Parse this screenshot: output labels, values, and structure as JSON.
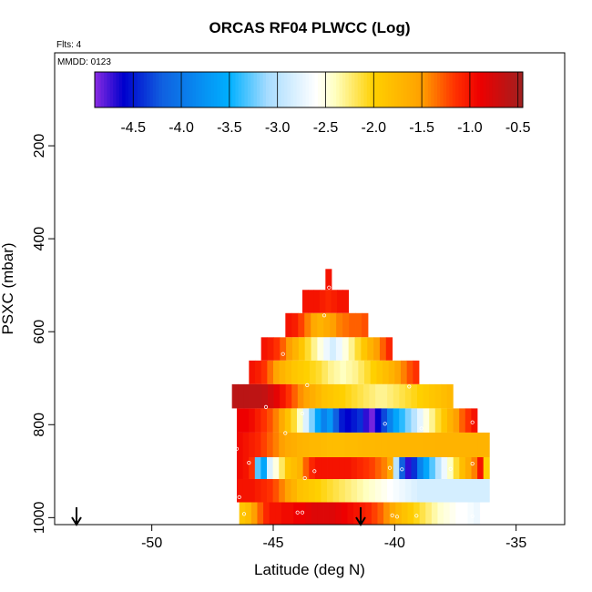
{
  "chart_data": {
    "type": "heatmap",
    "title": "ORCAS RF04 PLWCC (Log)",
    "flights_note": "Flts: 4",
    "date_note": "MMDD: 0123",
    "xlabel": "Latitude (deg N)",
    "ylabel": "PSXC (mbar)",
    "xlim": [
      -54.0,
      -33.0
    ],
    "ylim": [
      1015,
      0
    ],
    "x_ticks": [
      -50,
      -45,
      -40,
      -35
    ],
    "x_tick_labels": [
      "-50",
      "-45",
      "-40",
      "-35"
    ],
    "y_ticks": [
      200,
      400,
      600,
      800,
      1000
    ],
    "y_tick_labels": [
      "200",
      "400",
      "600",
      "800",
      "1000"
    ],
    "colorbar": {
      "min": -4.9,
      "max": -0.45,
      "ticks": [
        -4.5,
        -4.0,
        -3.5,
        -3.0,
        -2.5,
        -2.0,
        -1.5,
        -1.0,
        -0.5
      ],
      "tick_labels": [
        "-4.5",
        "-4.0",
        "-3.5",
        "-3.0",
        "-2.5",
        "-2.0",
        "-1.5",
        "-1.0",
        "-0.5"
      ],
      "stops": [
        {
          "v": -4.9,
          "c": "#8a2be2"
        },
        {
          "v": -4.6,
          "c": "#0000cd"
        },
        {
          "v": -4.2,
          "c": "#1060e0"
        },
        {
          "v": -3.5,
          "c": "#00b0ff"
        },
        {
          "v": -3.1,
          "c": "#a8dcff"
        },
        {
          "v": -2.6,
          "c": "#ffffff"
        },
        {
          "v": -2.4,
          "c": "#ffffc0"
        },
        {
          "v": -2.0,
          "c": "#ffd000"
        },
        {
          "v": -1.5,
          "c": "#ffa000"
        },
        {
          "v": -1.15,
          "c": "#ff3000"
        },
        {
          "v": -0.9,
          "c": "#ee0000"
        },
        {
          "v": -0.45,
          "c": "#a02020"
        }
      ]
    },
    "layers": [
      {
        "p_top": 465,
        "p_bot": 510,
        "lat_start": -42.85,
        "lat_end": -42.6,
        "values": [
          -1.0
        ]
      },
      {
        "p_top": 510,
        "p_bot": 560,
        "lat_start": -43.8,
        "lat_end": -41.9,
        "values": [
          -1.0,
          -1.0,
          -1.0,
          -1.05,
          -1.1,
          -1.05,
          -1.0,
          -1.0
        ]
      },
      {
        "p_top": 560,
        "p_bot": 612,
        "lat_start": -44.5,
        "lat_end": -41.1,
        "values": [
          -1.0,
          -1.05,
          -1.2,
          -1.4,
          -1.6,
          -1.7,
          -1.6,
          -1.5,
          -1.4,
          -1.35,
          -1.3,
          -1.3,
          -1.25
        ]
      },
      {
        "p_top": 612,
        "p_bot": 662,
        "lat_start": -45.5,
        "lat_end": -40.1,
        "values": [
          -1.0,
          -1.05,
          -1.15,
          -1.3,
          -1.5,
          -1.7,
          -1.9,
          -2.1,
          -2.3,
          -2.5,
          -2.7,
          -2.85,
          -2.7,
          -2.5,
          -2.3,
          -2.1,
          -1.9,
          -1.7,
          -1.5,
          -1.3,
          -1.1
        ]
      },
      {
        "p_top": 662,
        "p_bot": 713,
        "lat_start": -46.0,
        "lat_end": -39.0,
        "values": [
          -1.0,
          -1.05,
          -1.15,
          -1.35,
          -1.55,
          -1.7,
          -1.8,
          -1.9,
          -1.95,
          -2.0,
          -2.05,
          -2.1,
          -2.2,
          -2.3,
          -2.35,
          -2.4,
          -2.35,
          -2.3,
          -2.2,
          -2.1,
          -2.0,
          -1.9,
          -1.8,
          -1.7,
          -1.55,
          -1.4,
          -1.25,
          -1.15
        ]
      },
      {
        "p_top": 713,
        "p_bot": 765,
        "lat_start": -46.7,
        "lat_end": -37.6,
        "values": [
          -0.6,
          -0.6,
          -0.6,
          -0.62,
          -0.62,
          -0.65,
          -0.75,
          -0.85,
          -1.0,
          -1.15,
          -1.3,
          -1.45,
          -1.55,
          -1.65,
          -1.75,
          -1.85,
          -1.9,
          -1.95,
          -2.0,
          -2.05,
          -2.1,
          -2.15,
          -2.2,
          -2.25,
          -2.3,
          -2.3,
          -2.25,
          -2.2,
          -2.15,
          -2.1,
          -2.05,
          -2.0,
          -1.95,
          -1.9,
          -1.85,
          -1.8,
          -1.75
        ]
      },
      {
        "p_top": 765,
        "p_bot": 817,
        "lat_start": -46.5,
        "lat_end": -36.6,
        "values": [
          -0.9,
          -0.9,
          -0.95,
          -1.05,
          -1.15,
          -1.25,
          -1.4,
          -1.6,
          -1.85,
          -2.1,
          -2.4,
          -2.8,
          -3.2,
          -3.6,
          -3.9,
          -3.7,
          -4.2,
          -4.5,
          -4.6,
          -4.5,
          -4.4,
          -4.7,
          -4.85,
          -4.6,
          -4.3,
          -3.9,
          -3.6,
          -3.4,
          -3.2,
          -3.0,
          -2.75,
          -2.5,
          -2.3,
          -2.1,
          -1.9,
          -1.7,
          -1.5,
          -1.3,
          -1.15,
          -1.0
        ]
      },
      {
        "p_top": 817,
        "p_bot": 870,
        "lat_start": -46.5,
        "lat_end": -36.1,
        "values": [
          -0.95,
          -1.0,
          -1.05,
          -1.1,
          -1.2,
          -1.3,
          -1.4,
          -1.5,
          -1.6,
          -1.65,
          -1.7,
          -1.72,
          -1.75,
          -1.75,
          -1.78,
          -1.8,
          -1.8,
          -1.8,
          -1.78,
          -1.78,
          -1.76,
          -1.75,
          -1.75,
          -1.74,
          -1.74,
          -1.73,
          -1.73,
          -1.72,
          -1.72,
          -1.72,
          -1.72,
          -1.71,
          -1.71,
          -1.7,
          -1.7,
          -1.7,
          -1.7,
          -1.7,
          -1.7,
          -1.7,
          -1.7,
          -1.7
        ]
      },
      {
        "p_top": 870,
        "p_bot": 917,
        "lat_start": -46.5,
        "lat_end": -36.1,
        "values": [
          -0.95,
          -1.0,
          -1.15,
          -3.3,
          -3.6,
          -2.8,
          -2.5,
          -2.2,
          -1.9,
          -1.8,
          -1.7,
          -1.3,
          -1.1,
          -1.0,
          -1.0,
          -1.0,
          -1.0,
          -1.0,
          -1.0,
          -1.05,
          -1.1,
          -1.15,
          -1.2,
          -1.3,
          -1.4,
          -1.6,
          -3.0,
          -4.2,
          -4.7,
          -4.4,
          -3.9,
          -3.6,
          -3.3,
          -3.0,
          -2.7,
          -2.4,
          -2.1,
          -1.8,
          -1.6,
          -1.4,
          -1.0,
          -2.0
        ]
      },
      {
        "p_top": 917,
        "p_bot": 967,
        "lat_start": -46.5,
        "lat_end": -36.1,
        "values": [
          -1.0,
          -1.0,
          -1.0,
          -1.05,
          -1.1,
          -1.15,
          -1.25,
          -1.4,
          -1.55,
          -1.7,
          -1.85,
          -1.9,
          -1.95,
          -2.0,
          -2.05,
          -2.1,
          -2.15,
          -2.2,
          -2.25,
          -2.3,
          -2.35,
          -2.4,
          -2.45,
          -2.5,
          -2.55,
          -2.6,
          -2.65,
          -2.7,
          -2.75,
          -2.8,
          -2.85,
          -2.85,
          -2.85,
          -2.85,
          -2.85,
          -2.85,
          -2.85,
          -2.85,
          -2.85,
          -2.85,
          -2.85,
          -2.85
        ]
      },
      {
        "p_top": 967,
        "p_bot": 1015,
        "lat_start": -46.4,
        "lat_end": -36.5,
        "values": [
          -1.9,
          -1.8,
          -1.5,
          -1.3,
          -1.1,
          -1.0,
          -1.0,
          -0.95,
          -0.95,
          -0.9,
          -0.9,
          -0.85,
          -0.8,
          -0.8,
          -0.8,
          -0.8,
          -0.85,
          -0.9,
          -0.95,
          -1.0,
          -1.05,
          -1.1,
          -1.2,
          -1.3,
          -1.45,
          -1.6,
          -1.75,
          -1.85,
          -1.95,
          -2.05,
          -2.15,
          -2.25,
          -2.35,
          -2.45,
          -2.5,
          -2.55,
          -2.6,
          -2.6,
          -2.65,
          -2.7
        ]
      }
    ],
    "markers": [
      {
        "lat": -42.7,
        "p": 505
      },
      {
        "lat": -42.9,
        "p": 565
      },
      {
        "lat": -44.6,
        "p": 648
      },
      {
        "lat": -43.6,
        "p": 715
      },
      {
        "lat": -39.4,
        "p": 718
      },
      {
        "lat": -45.3,
        "p": 762
      },
      {
        "lat": -43.8,
        "p": 776
      },
      {
        "lat": -40.4,
        "p": 798
      },
      {
        "lat": -36.8,
        "p": 795
      },
      {
        "lat": -38.9,
        "p": 808
      },
      {
        "lat": -44.5,
        "p": 818
      },
      {
        "lat": -46.5,
        "p": 852
      },
      {
        "lat": -46.0,
        "p": 882
      },
      {
        "lat": -43.3,
        "p": 900
      },
      {
        "lat": -40.2,
        "p": 893
      },
      {
        "lat": -39.7,
        "p": 896
      },
      {
        "lat": -37.7,
        "p": 895
      },
      {
        "lat": -36.8,
        "p": 884
      },
      {
        "lat": -43.7,
        "p": 915
      },
      {
        "lat": -46.4,
        "p": 956
      },
      {
        "lat": -44.0,
        "p": 989
      },
      {
        "lat": -43.8,
        "p": 989
      },
      {
        "lat": -46.2,
        "p": 992
      },
      {
        "lat": -40.1,
        "p": 995
      },
      {
        "lat": -39.9,
        "p": 998
      },
      {
        "lat": -39.1,
        "p": 996
      },
      {
        "lat": -36.8,
        "p": 997
      }
    ],
    "arrows": [
      {
        "lat": -53.1
      },
      {
        "lat": -41.4
      }
    ]
  }
}
